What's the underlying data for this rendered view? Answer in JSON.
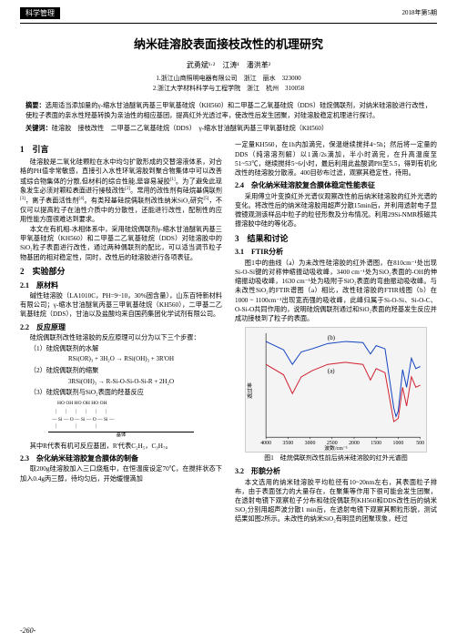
{
  "header": {
    "badge": "科学管理",
    "issue": "2018年第5期"
  },
  "title": "纳米硅溶胶表面接枝改性的机理研究",
  "authors_line": "武勇斌¹·²　江涛¹　潘洪革²",
  "affiliations": [
    "1.浙江山商照明电器有限公司　浙江　丽水　323000",
    "2.浙江大学材料科学与工程学院　浙江　杭州　310058"
  ],
  "abstract": {
    "label": "摘要：",
    "text": "选用适当添加量的γ-缩水甘油醚氧丙基三甲氧基硅烷（KH560）和二甲基二乙氧基硅烷（DDS）硅烷偶联剂，对纳米硅溶胶进行改性，使粒子表面的亲水性羟基转换为亲油性的相应基团，提高红外光透过率，使改性后发生团聚，对硅溶胶稳定机理进行探讨。"
  },
  "keywords": {
    "label": "关键词：",
    "text": "硅溶胶　接枝改性　二甲基二乙氧基硅烷（DDS）　γ-缩水甘油醚氧丙基三甲氧基硅烷（KH560）"
  },
  "left": {
    "s1_title": "1　引言",
    "s1_p1": "硅溶胶是二氧化硅颗粒在水中均匀扩散形成的交替溶液体系，对合格的PH值非常敏感，直接引入水性环氧溶胶到聚合物集体中可以改善或综合物集体的分散,但材料的综合性能,是容易凝胶",
    "s1_p1b": "。为了避免此现象发生必须对颗粒表面进行接枝改性",
    "s1_p1c": "。常用的改性剂有硅烷基偶联剂",
    "s1_p1d": "，离子表面活性剂",
    "s1_p1e": "。有类羟基硅烷偶联剂改性纳米SiO₂研究",
    "s1_p1f": "，不仅可以提高粒子在油性介质中的分散性，还能进行改性，配制性的应用性能方面很难达到要求。",
    "s1_p2": "本文在有机相-水相体系中，采用硅烷偶联剂γ-缩水甘油醚氧丙基三甲氧基硅烷（KH560）和二甲基二乙氧基硅烷（DDS）对硅溶胶中的SiO₂粒子表面进行改性，通过两种偶联剂的配比，可以适当调节粒子物基团的相对稳定性，同时，改性后的硅溶胶进行各项表征。",
    "s2_title": "2　实验部分",
    "s21_title": "2.1　原材料",
    "s21_p": "碱性硅溶胶（LA1010C，PH=9~10，30%固含量），山东百特新材料有限公司；γ-缩水甘油醚氧丙基三甲氧基硅烷（KH560），二甲基二乙氧基硅烷（DDS），甘油以及盐酸均来自国药集团化学试剂有限公司。",
    "s22_title": "2.2　反应原理",
    "s22_p": "硅烷偶联剂改性硅溶胶的反应原理可以分为以下三个步骤：",
    "step1": "（1）硅烷偶联剂的水解",
    "formula1": "RSi(OR)₃ + 3H₂O → RSi(OH)₃ + 3R'OH",
    "step2": "（2）硅烷偶联剂的缩聚",
    "formula2": "3RSi(OH)₃ → R-Si-O-Si-O-Si-R + 2H₂O",
    "step3": "（3）硅烷偶联剂与SiO₂表面的羟基反应",
    "diag_top": "HO  OH  HO  OH  HO  OH",
    "diag_mid": "— Si — O — Si — O — Si —",
    "diag_bot": "基体",
    "s22_p2a": "其中R代表有机可反应基团，R'代表C₂H₅，C₃H₇。",
    "s23_title": "2.3　杂化纳米硅溶胶复合膜体的制备",
    "s23_p": "取200g硅溶胶加入三口烧瓶中，在恒温度设定70℃，在搅拌状态下加入0.4g丙三醇，待均匀后，开始缓慢滴加"
  },
  "right": {
    "p_cont": "一定量KH560，在1h内加滴完，保温继续搅拌4~5h；然后将一定量的DDS（纯溶溶剂解）以1滴/2s滴加，半小时滴完，在升高温度至51~53℃，继续搅拌5~6小时，最后利用此盐酸调PH至5.5，得到有机化改性的硅溶胶分散液。400目砂布过滤，观察其稳定性，待用。",
    "s24_title": "2.4　杂化纳米硅溶胶复合膜体稳定性能表征",
    "s24_p": "采用傅立叶变换红外光谱仪观察改性前后纳米硅溶胶的红外光谱的变化。将改性后的纳米硅溶胶用超声分散15min后，并利用透射电子显微镜观测该样品中粒子的粒径形数及分布情况。利用29Si-NMR核磁共振溶胶中硅的等化态。",
    "s3_title": "3　结果和讨论",
    "s31_title": "3.1　FTIR分析",
    "s31_p1": "图1中的曲线（a）为未改性硅溶胶的红外谱图，在810cm⁻¹处出现Si-O-Si键的对称伸缩振动吸收峰，3400 cm⁻¹处为SiO₂表面的-OH的伸缩振动吸收峰，1630 cm⁻¹处为吸附于SiO₂表面的弯曲振动吸收峰。与未改性SiO₂的FTIR谱图（a）相比，改性硅溶胶的FTIR线图（b）在1000 ~ 1100cm⁻¹出现宽而强的吸收峰，此峰归属于Si-O-Si、Si-O-C、O-Si-O共同作用的，说明硅烷偶联剂通过和SiO₂表面的羟基发生反应并成功接枝到了粒子的表面。",
    "fig1_caption": "图1　硅烷偶联剂改性前后纳米硅溶胶的红外光谱图",
    "s32_title": "3.2　形貌分析",
    "s32_p": "本文选用的纳米硅溶胶平均粒径有10~20nm左右，其表面粒子排布，由于表面张力的大量存在，在聚集等作用下很可能会发生团聚，在透射电镜下观察粒子分布和硅烷偶联剂KH560和DDS改性后的纳米SiO₂分别用超声波分散1 min后，在透射电镜下观察其颗粒形貌，测试结果如图2所示。未改性的纳米SiO₂有明显的团聚现象，经过"
  },
  "chart": {
    "type": "line",
    "xlabel": "波数/cm⁻¹",
    "ylabel": "透过率",
    "xlim": [
      4000,
      500
    ],
    "xticks": [
      4000,
      3500,
      3000,
      2500,
      2000,
      1500,
      1000,
      500
    ],
    "curves": {
      "a": {
        "label": "(a)",
        "color": "#d02030",
        "points": [
          [
            4000,
            70
          ],
          [
            3600,
            60
          ],
          [
            3400,
            42
          ],
          [
            3200,
            58
          ],
          [
            2950,
            64
          ],
          [
            2600,
            70
          ],
          [
            2200,
            72
          ],
          [
            1800,
            70
          ],
          [
            1630,
            55
          ],
          [
            1500,
            66
          ],
          [
            1300,
            62
          ],
          [
            1100,
            15
          ],
          [
            1000,
            18
          ],
          [
            900,
            48
          ],
          [
            810,
            30
          ],
          [
            700,
            58
          ],
          [
            600,
            48
          ],
          [
            500,
            50
          ]
        ]
      },
      "b": {
        "label": "(b)",
        "color": "#1040c0",
        "points": [
          [
            4000,
            92
          ],
          [
            3600,
            84
          ],
          [
            3400,
            70
          ],
          [
            3200,
            82
          ],
          [
            2950,
            85
          ],
          [
            2600,
            90
          ],
          [
            2200,
            92
          ],
          [
            1800,
            91
          ],
          [
            1630,
            80
          ],
          [
            1500,
            88
          ],
          [
            1300,
            85
          ],
          [
            1100,
            28
          ],
          [
            1050,
            20
          ],
          [
            1000,
            25
          ],
          [
            900,
            65
          ],
          [
            810,
            48
          ],
          [
            700,
            76
          ],
          [
            600,
            66
          ],
          [
            500,
            68
          ]
        ]
      }
    },
    "bg": "#f4f4f4",
    "axis_color": "#000",
    "grid_color": "#999",
    "font_size": 6
  },
  "page_number": "-260-"
}
